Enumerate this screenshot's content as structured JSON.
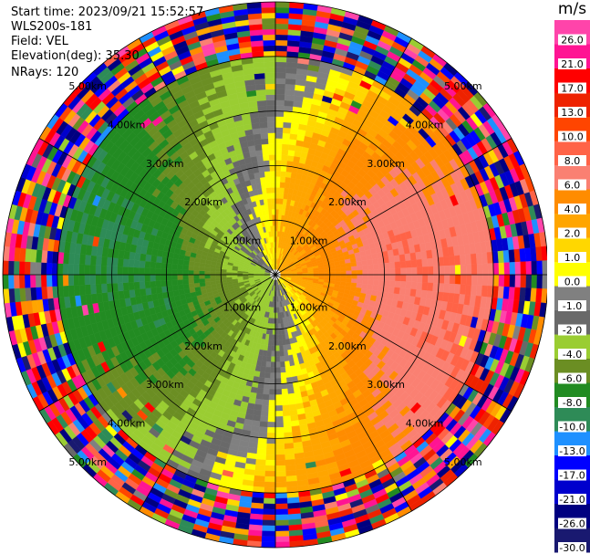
{
  "header": {
    "start_time": "Start time: 2023/09/21 15:52:57",
    "instrument": "WLS200s-181",
    "field": "Field: VEL",
    "elevation": "Elevation(deg): 35.30",
    "nrays": "NRays: 120"
  },
  "colorbar": {
    "unit": "m/s",
    "labels": [
      "26.0",
      "21.0",
      "17.0",
      "13.0",
      "10.0",
      "8.0",
      "6.0",
      "4.0",
      "2.0",
      "1.0",
      "0.0",
      "-1.0",
      "-2.0",
      "-4.0",
      "-6.0",
      "-8.0",
      "-10.0",
      "-13.0",
      "-17.0",
      "-21.0",
      "-26.0",
      "-30.0"
    ],
    "colors": [
      "#ff44aa",
      "#ff1493",
      "#ff0000",
      "#ee2200",
      "#ff4500",
      "#ff6347",
      "#fa8072",
      "#ff8c00",
      "#ffa500",
      "#ffd700",
      "#ffff00",
      "#808080",
      "#696969",
      "#9acd32",
      "#6b8e23",
      "#228b22",
      "#2e8b57",
      "#1e90ff",
      "#0000ff",
      "#0000cd",
      "#000080",
      "#191970"
    ]
  },
  "chart_data": {
    "type": "heatmap",
    "projection": "polar-ppi",
    "field": "VEL",
    "unit": "m/s",
    "n_rays": 120,
    "range_rings": [
      {
        "range_km": 1.0,
        "label": "1.00km"
      },
      {
        "range_km": 2.0,
        "label": "2.00km"
      },
      {
        "range_km": 3.0,
        "label": "3.00km"
      },
      {
        "range_km": 4.0,
        "label": "4.00km"
      },
      {
        "range_km": 5.0,
        "label": "5.00km"
      }
    ],
    "max_range_km": 5.0,
    "spokes_deg": [
      0,
      30,
      60,
      90,
      120,
      150,
      180,
      210,
      240,
      270,
      300,
      330
    ],
    "pattern": {
      "approach_dir_deg": 240,
      "recede_dir_deg": 60,
      "zero_isodop_dir_deg": [
        150,
        330
      ],
      "max_abs_velocity": 8.0,
      "valid_range_km": 4.0,
      "noise_start_km": 4.0
    }
  }
}
